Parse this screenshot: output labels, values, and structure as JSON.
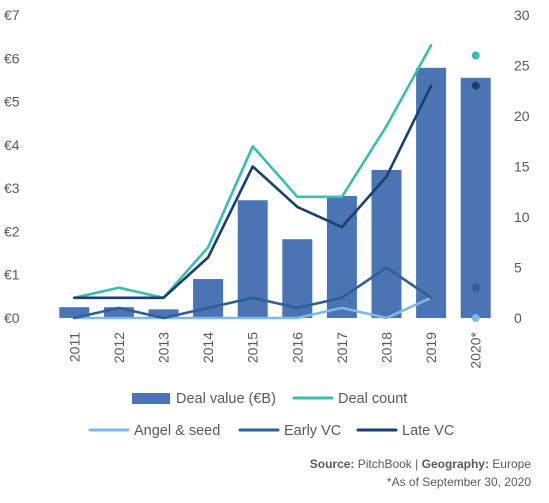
{
  "chart_data": {
    "type": "bar",
    "categories": [
      "2011",
      "2012",
      "2013",
      "2014",
      "2015",
      "2016",
      "2017",
      "2018",
      "2019",
      "2020*"
    ],
    "y_left": {
      "ticks": [
        "€0",
        "€1",
        "€2",
        "€3",
        "€4",
        "€5",
        "€6",
        "€7"
      ],
      "range": [
        0,
        7
      ]
    },
    "y_right": {
      "ticks": [
        "0",
        "5",
        "10",
        "15",
        "20",
        "25",
        "30"
      ],
      "range": [
        0,
        30
      ]
    },
    "grid": false,
    "legend_position": "bottom",
    "series": [
      {
        "name": "Deal value (€B)",
        "type": "bar",
        "axis": "left",
        "color": "#4a74b4",
        "values": [
          0.25,
          0.25,
          0.2,
          0.9,
          2.72,
          1.82,
          2.82,
          3.42,
          5.78,
          5.55
        ]
      },
      {
        "name": "Deal count",
        "type": "line",
        "axis": "right",
        "color": "#3dbdad",
        "values": [
          2,
          3,
          2,
          7,
          17,
          12,
          12,
          19,
          27,
          26
        ]
      },
      {
        "name": "Angel & seed",
        "type": "line",
        "axis": "right",
        "color": "#7fb8e3",
        "values": [
          0,
          0,
          0,
          0,
          0,
          0,
          1,
          0,
          2,
          0
        ]
      },
      {
        "name": "Early VC",
        "type": "line",
        "axis": "right",
        "color": "#2f5f96",
        "values": [
          0,
          1,
          0,
          1,
          2,
          1,
          2,
          5,
          2,
          3
        ]
      },
      {
        "name": "Late VC",
        "type": "line",
        "axis": "right",
        "color": "#1b3f6e",
        "values": [
          2,
          2,
          2,
          6,
          15,
          11,
          9,
          14,
          23,
          23
        ]
      }
    ]
  },
  "footer": {
    "source_label": "Source:",
    "source_value": "PitchBook",
    "separator": "|",
    "geo_label": "Geography:",
    "geo_value": "Europe",
    "note": "*As of September 30, 2020"
  }
}
